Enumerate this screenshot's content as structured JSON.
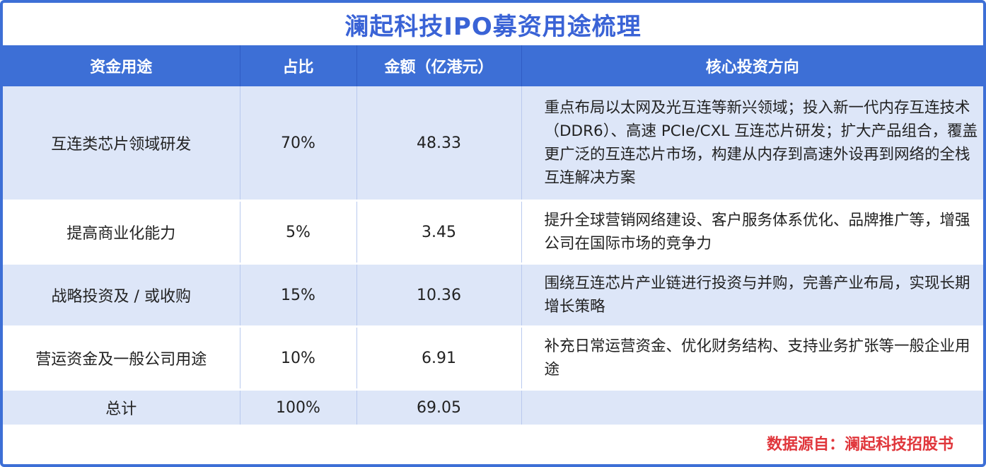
{
  "title": "澜起科技IPO募资用途梳理",
  "headers": [
    "资金用途",
    "占比",
    "金额（亿港元）",
    "核心投资方向"
  ],
  "rows": [
    {
      "use": "互连类芯片领域研发",
      "ratio": "70%",
      "amount": "48.33",
      "direction": "重点布局以太网及光互连等新兴领域；投入新一代内存互连技术（DDR6）、高速 PCIe/CXL 互连芯片研发；扩大产品组合，覆盖更广泛的互连芯片市场，构建从内存到高速外设再到网络的全栈互连解决方案"
    },
    {
      "use": "提高商业化能力",
      "ratio": "5%",
      "amount": "3.45",
      "direction": "提升全球营销网络建设、客户服务体系优化、品牌推广等，增强公司在国际市场的竞争力"
    },
    {
      "use": "战略投资及 / 或收购",
      "ratio": "15%",
      "amount": "10.36",
      "direction": "围绕互连芯片产业链进行投资与并购，完善产业布局，实现长期增长策略"
    },
    {
      "use": "营运资金及一般公司用途",
      "ratio": "10%",
      "amount": "6.91",
      "direction": "补充日常运营资金、优化财务结构、支持业务扩张等一般企业用途"
    },
    {
      "use": "总计",
      "ratio": "100%",
      "amount": "69.05",
      "direction": ""
    }
  ],
  "source": "数据源自：澜起科技招股书"
}
